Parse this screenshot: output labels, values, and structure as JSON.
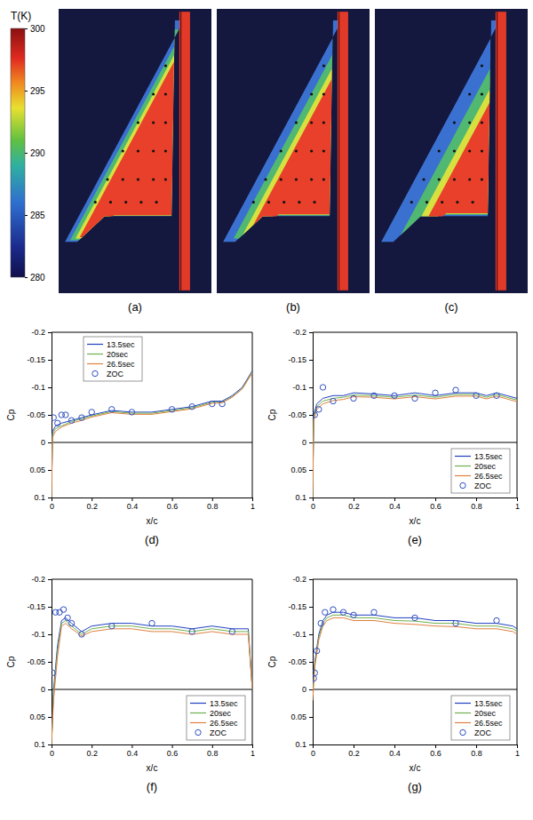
{
  "thermal_images": {
    "colorbar": {
      "title": "T(K)",
      "range": [
        280,
        300
      ],
      "ticks": [
        280,
        285,
        290,
        295,
        300
      ]
    },
    "panels": [
      {
        "label": "(a)"
      },
      {
        "label": "(b)"
      },
      {
        "label": "(c)"
      }
    ]
  },
  "chart_data": [
    {
      "type": "line",
      "title": "(d)",
      "x_label": "x/c",
      "y_label": "Cp",
      "xlim": [
        0,
        1
      ],
      "xticks": [
        0,
        0.2,
        0.4,
        0.6,
        0.8,
        1
      ],
      "ylim": [
        0.1,
        -0.2
      ],
      "yticks": [
        0.1,
        0.05,
        0,
        -0.05,
        -0.1,
        -0.15,
        -0.2
      ],
      "grid": false,
      "legend": "top-left",
      "series": [
        {
          "name": "13.5sec",
          "type": "line",
          "line_style": "solid",
          "color": "#2040c0",
          "x": [
            0,
            0.005,
            0.02,
            0.05,
            0.1,
            0.15,
            0.2,
            0.3,
            0.4,
            0.5,
            0.6,
            0.7,
            0.8,
            0.85,
            0.9,
            0.95,
            1
          ],
          "values": [
            0.1,
            -0.02,
            -0.03,
            -0.035,
            -0.04,
            -0.045,
            -0.05,
            -0.058,
            -0.055,
            -0.055,
            -0.06,
            -0.065,
            -0.075,
            -0.075,
            -0.085,
            -0.1,
            -0.13
          ]
        },
        {
          "name": "20sec",
          "type": "line",
          "line_style": "solid",
          "color": "#6fb04f",
          "x": [
            0,
            0.005,
            0.02,
            0.05,
            0.1,
            0.15,
            0.2,
            0.3,
            0.4,
            0.5,
            0.6,
            0.7,
            0.8,
            0.85,
            0.9,
            0.95,
            1
          ],
          "values": [
            0.1,
            -0.015,
            -0.025,
            -0.03,
            -0.038,
            -0.043,
            -0.048,
            -0.056,
            -0.053,
            -0.053,
            -0.058,
            -0.063,
            -0.073,
            -0.073,
            -0.083,
            -0.098,
            -0.128
          ]
        },
        {
          "name": "26.5sec",
          "type": "line",
          "line_style": "solid",
          "color": "#e08040",
          "x": [
            0,
            0.005,
            0.02,
            0.05,
            0.1,
            0.15,
            0.2,
            0.3,
            0.4,
            0.5,
            0.6,
            0.7,
            0.8,
            0.85,
            0.9,
            0.95,
            1
          ],
          "values": [
            0.1,
            -0.01,
            -0.02,
            -0.028,
            -0.035,
            -0.04,
            -0.046,
            -0.054,
            -0.051,
            -0.051,
            -0.056,
            -0.061,
            -0.071,
            -0.072,
            -0.082,
            -0.097,
            -0.126
          ]
        },
        {
          "name": "ZOC",
          "type": "scatter",
          "marker": "circle",
          "color": "#3050c0",
          "x": [
            0.01,
            0.03,
            0.05,
            0.07,
            0.1,
            0.15,
            0.2,
            0.3,
            0.4,
            0.6,
            0.7,
            0.8,
            0.85
          ],
          "values": [
            -0.045,
            -0.035,
            -0.05,
            -0.05,
            -0.04,
            -0.045,
            -0.055,
            -0.06,
            -0.055,
            -0.06,
            -0.065,
            -0.07,
            -0.07
          ]
        }
      ]
    },
    {
      "type": "line",
      "title": "(e)",
      "x_label": "x/c",
      "y_label": "Cp",
      "xlim": [
        0,
        1
      ],
      "xticks": [
        0,
        0.2,
        0.4,
        0.6,
        0.8,
        1
      ],
      "ylim": [
        0.1,
        -0.2
      ],
      "yticks": [
        0.1,
        0.05,
        0,
        -0.05,
        -0.1,
        -0.15,
        -0.2
      ],
      "grid": false,
      "legend": "bottom-right",
      "series": [
        {
          "name": "13.5sec",
          "type": "line",
          "line_style": "solid",
          "color": "#2040c0",
          "x": [
            0,
            0.005,
            0.02,
            0.05,
            0.1,
            0.15,
            0.2,
            0.3,
            0.4,
            0.5,
            0.6,
            0.7,
            0.8,
            0.85,
            0.9,
            0.95,
            1
          ],
          "values": [
            0.1,
            -0.05,
            -0.07,
            -0.08,
            -0.085,
            -0.085,
            -0.09,
            -0.088,
            -0.085,
            -0.09,
            -0.085,
            -0.09,
            -0.09,
            -0.085,
            -0.09,
            -0.085,
            -0.08
          ]
        },
        {
          "name": "20sec",
          "type": "line",
          "line_style": "solid",
          "color": "#6fb04f",
          "x": [
            0,
            0.005,
            0.02,
            0.05,
            0.1,
            0.15,
            0.2,
            0.3,
            0.4,
            0.5,
            0.6,
            0.7,
            0.8,
            0.85,
            0.9,
            0.95,
            1
          ],
          "values": [
            0.1,
            -0.045,
            -0.065,
            -0.075,
            -0.08,
            -0.082,
            -0.086,
            -0.085,
            -0.082,
            -0.086,
            -0.082,
            -0.087,
            -0.087,
            -0.082,
            -0.087,
            -0.082,
            -0.077
          ]
        },
        {
          "name": "26.5sec",
          "type": "line",
          "line_style": "solid",
          "color": "#e08040",
          "x": [
            0,
            0.005,
            0.02,
            0.05,
            0.1,
            0.15,
            0.2,
            0.3,
            0.4,
            0.5,
            0.6,
            0.7,
            0.8,
            0.85,
            0.9,
            0.95,
            1
          ],
          "values": [
            0.1,
            -0.04,
            -0.06,
            -0.07,
            -0.076,
            -0.078,
            -0.083,
            -0.082,
            -0.079,
            -0.083,
            -0.079,
            -0.084,
            -0.084,
            -0.079,
            -0.084,
            -0.079,
            -0.074
          ]
        },
        {
          "name": "ZOC",
          "type": "scatter",
          "marker": "circle",
          "color": "#3050c0",
          "x": [
            0.01,
            0.03,
            0.05,
            0.1,
            0.2,
            0.3,
            0.4,
            0.5,
            0.6,
            0.7,
            0.8,
            0.9
          ],
          "values": [
            -0.05,
            -0.06,
            -0.1,
            -0.075,
            -0.08,
            -0.085,
            -0.085,
            -0.08,
            -0.09,
            -0.095,
            -0.085,
            -0.085
          ]
        }
      ]
    },
    {
      "type": "line",
      "title": "(f)",
      "x_label": "x/c",
      "y_label": "Cp",
      "xlim": [
        0,
        1
      ],
      "xticks": [
        0,
        0.2,
        0.4,
        0.6,
        0.8,
        1
      ],
      "ylim": [
        0.1,
        -0.2
      ],
      "yticks": [
        0.1,
        0.05,
        0,
        -0.05,
        -0.1,
        -0.15,
        -0.2
      ],
      "grid": false,
      "legend": "bottom-right",
      "series": [
        {
          "name": "13.5sec",
          "type": "line",
          "line_style": "solid",
          "color": "#2040c0",
          "x": [
            0,
            0.01,
            0.03,
            0.05,
            0.07,
            0.1,
            0.15,
            0.2,
            0.3,
            0.4,
            0.5,
            0.6,
            0.7,
            0.8,
            0.9,
            0.98,
            1
          ],
          "values": [
            0.1,
            0,
            -0.08,
            -0.125,
            -0.13,
            -0.12,
            -0.105,
            -0.115,
            -0.12,
            -0.12,
            -0.115,
            -0.115,
            -0.11,
            -0.115,
            -0.11,
            -0.11,
            0
          ]
        },
        {
          "name": "20sec",
          "type": "line",
          "line_style": "solid",
          "color": "#6fb04f",
          "x": [
            0,
            0.01,
            0.03,
            0.05,
            0.07,
            0.1,
            0.15,
            0.2,
            0.3,
            0.4,
            0.5,
            0.6,
            0.7,
            0.8,
            0.9,
            0.98,
            1
          ],
          "values": [
            0.1,
            0.01,
            -0.07,
            -0.12,
            -0.125,
            -0.115,
            -0.1,
            -0.11,
            -0.115,
            -0.115,
            -0.11,
            -0.11,
            -0.105,
            -0.11,
            -0.105,
            -0.105,
            0
          ]
        },
        {
          "name": "26.5sec",
          "type": "line",
          "line_style": "solid",
          "color": "#e08040",
          "x": [
            0,
            0.01,
            0.03,
            0.05,
            0.07,
            0.1,
            0.15,
            0.2,
            0.3,
            0.4,
            0.5,
            0.6,
            0.7,
            0.8,
            0.9,
            0.98,
            1
          ],
          "values": [
            0.1,
            0.02,
            -0.06,
            -0.115,
            -0.12,
            -0.11,
            -0.097,
            -0.105,
            -0.11,
            -0.11,
            -0.105,
            -0.105,
            -0.1,
            -0.105,
            -0.1,
            -0.1,
            0
          ]
        },
        {
          "name": "ZOC",
          "type": "scatter",
          "marker": "circle",
          "color": "#3050c0",
          "x": [
            0.005,
            0.02,
            0.04,
            0.06,
            0.08,
            0.1,
            0.15,
            0.3,
            0.5,
            0.7,
            0.9
          ],
          "values": [
            -0.03,
            -0.14,
            -0.14,
            -0.145,
            -0.13,
            -0.12,
            -0.1,
            -0.115,
            -0.12,
            -0.105,
            -0.105
          ]
        }
      ]
    },
    {
      "type": "line",
      "title": "(g)",
      "x_label": "x/c",
      "y_label": "Cp",
      "xlim": [
        0,
        1
      ],
      "xticks": [
        0,
        0.2,
        0.4,
        0.6,
        0.8,
        1
      ],
      "ylim": [
        0.1,
        -0.2
      ],
      "yticks": [
        0.1,
        0.05,
        0,
        -0.05,
        -0.1,
        -0.15,
        -0.2
      ],
      "grid": false,
      "legend": "bottom-right",
      "series": [
        {
          "name": "13.5sec",
          "type": "line",
          "line_style": "solid",
          "color": "#2040c0",
          "x": [
            0,
            0.01,
            0.03,
            0.05,
            0.07,
            0.1,
            0.15,
            0.2,
            0.3,
            0.4,
            0.5,
            0.6,
            0.7,
            0.8,
            0.9,
            0.98,
            1
          ],
          "values": [
            0,
            -0.05,
            -0.1,
            -0.125,
            -0.135,
            -0.14,
            -0.14,
            -0.135,
            -0.135,
            -0.13,
            -0.13,
            -0.125,
            -0.125,
            -0.12,
            -0.12,
            -0.115,
            -0.11
          ]
        },
        {
          "name": "20sec",
          "type": "line",
          "line_style": "solid",
          "color": "#6fb04f",
          "x": [
            0,
            0.01,
            0.03,
            0.05,
            0.07,
            0.1,
            0.15,
            0.2,
            0.3,
            0.4,
            0.5,
            0.6,
            0.7,
            0.8,
            0.9,
            0.98,
            1
          ],
          "values": [
            0.01,
            -0.045,
            -0.095,
            -0.12,
            -0.13,
            -0.135,
            -0.135,
            -0.13,
            -0.13,
            -0.125,
            -0.124,
            -0.12,
            -0.12,
            -0.115,
            -0.115,
            -0.11,
            -0.105
          ]
        },
        {
          "name": "26.5sec",
          "type": "line",
          "line_style": "solid",
          "color": "#e08040",
          "x": [
            0,
            0.01,
            0.03,
            0.05,
            0.07,
            0.1,
            0.15,
            0.2,
            0.3,
            0.4,
            0.5,
            0.6,
            0.7,
            0.8,
            0.9,
            0.98,
            1
          ],
          "values": [
            0.02,
            -0.04,
            -0.09,
            -0.115,
            -0.125,
            -0.13,
            -0.13,
            -0.125,
            -0.125,
            -0.12,
            -0.118,
            -0.115,
            -0.114,
            -0.11,
            -0.11,
            -0.105,
            -0.1
          ]
        },
        {
          "name": "ZOC",
          "type": "scatter",
          "marker": "circle",
          "color": "#3050c0",
          "x": [
            0.005,
            0.01,
            0.02,
            0.04,
            0.06,
            0.1,
            0.15,
            0.2,
            0.3,
            0.5,
            0.7,
            0.9
          ],
          "values": [
            -0.02,
            -0.03,
            -0.07,
            -0.12,
            -0.14,
            -0.145,
            -0.14,
            -0.135,
            -0.14,
            -0.13,
            -0.12,
            -0.125
          ]
        }
      ]
    }
  ]
}
